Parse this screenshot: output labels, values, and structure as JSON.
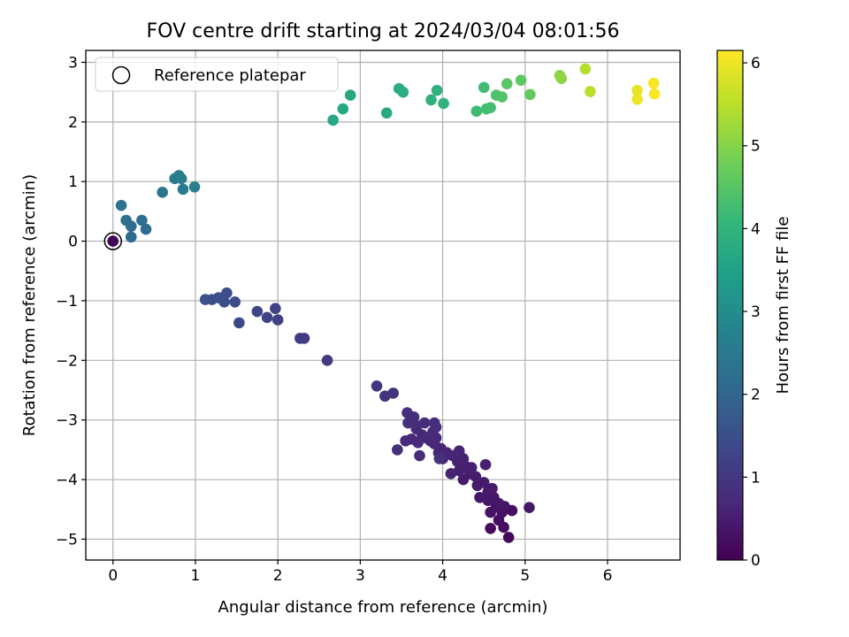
{
  "chart_data": {
    "type": "scatter",
    "title": "FOV centre drift starting at 2024/03/04 08:01:56",
    "xlabel": "Angular distance from reference (arcmin)",
    "ylabel": "Rotation from reference (arcmin)",
    "xlim": [
      -0.33,
      6.88
    ],
    "ylim": [
      -5.35,
      3.2
    ],
    "xticks": [
      0,
      1,
      2,
      3,
      4,
      5,
      6
    ],
    "yticks": [
      -5,
      -4,
      -3,
      -2,
      -1,
      0,
      1,
      2,
      3
    ],
    "grid": true,
    "legend": {
      "location": "upper-left",
      "entries": [
        "Reference platepar"
      ]
    },
    "reference_point": {
      "x": 0,
      "y": 0,
      "label": "Reference platepar"
    },
    "colorbar": {
      "label": "Hours from first FF file",
      "colormap": "viridis",
      "range": [
        0,
        6.15
      ],
      "ticks": [
        0,
        1,
        2,
        3,
        4,
        5,
        6
      ]
    },
    "series": [
      {
        "points": [
          {
            "x": 0.0,
            "y": 0.0,
            "c": 0.05
          },
          {
            "x": 4.8,
            "y": -4.97,
            "c": 0.1
          },
          {
            "x": 4.58,
            "y": -4.82,
            "c": 0.15
          },
          {
            "x": 4.74,
            "y": -4.8,
            "c": 0.2
          },
          {
            "x": 4.84,
            "y": -4.52,
            "c": 0.22
          },
          {
            "x": 4.68,
            "y": -4.68,
            "c": 0.25
          },
          {
            "x": 4.72,
            "y": -4.55,
            "c": 0.28
          },
          {
            "x": 4.58,
            "y": -4.55,
            "c": 0.3
          },
          {
            "x": 4.65,
            "y": -4.45,
            "c": 0.32
          },
          {
            "x": 4.75,
            "y": -4.45,
            "c": 0.34
          },
          {
            "x": 4.55,
            "y": -4.35,
            "c": 0.35
          },
          {
            "x": 4.62,
            "y": -4.3,
            "c": 0.36
          },
          {
            "x": 4.68,
            "y": -4.4,
            "c": 0.37
          },
          {
            "x": 5.05,
            "y": -4.47,
            "c": 0.38
          },
          {
            "x": 4.45,
            "y": -4.3,
            "c": 0.4
          },
          {
            "x": 4.55,
            "y": -4.2,
            "c": 0.42
          },
          {
            "x": 4.6,
            "y": -4.15,
            "c": 0.44
          },
          {
            "x": 4.42,
            "y": -4.1,
            "c": 0.45
          },
          {
            "x": 4.5,
            "y": -4.05,
            "c": 0.46
          },
          {
            "x": 4.25,
            "y": -4.0,
            "c": 0.47
          },
          {
            "x": 4.33,
            "y": -3.9,
            "c": 0.48
          },
          {
            "x": 4.4,
            "y": -3.95,
            "c": 0.5
          },
          {
            "x": 4.2,
            "y": -3.85,
            "c": 0.52
          },
          {
            "x": 4.28,
            "y": -3.78,
            "c": 0.54
          },
          {
            "x": 4.35,
            "y": -3.8,
            "c": 0.55
          },
          {
            "x": 4.52,
            "y": -3.75,
            "c": 0.56
          },
          {
            "x": 4.1,
            "y": -3.9,
            "c": 0.57
          },
          {
            "x": 4.18,
            "y": -3.7,
            "c": 0.58
          },
          {
            "x": 4.25,
            "y": -3.65,
            "c": 0.6
          },
          {
            "x": 4.2,
            "y": -3.52,
            "c": 0.61
          },
          {
            "x": 4.0,
            "y": -3.65,
            "c": 0.62
          },
          {
            "x": 4.05,
            "y": -3.55,
            "c": 0.63
          },
          {
            "x": 4.12,
            "y": -3.6,
            "c": 0.64
          },
          {
            "x": 3.95,
            "y": -3.55,
            "c": 0.65
          },
          {
            "x": 3.98,
            "y": -3.48,
            "c": 0.66
          },
          {
            "x": 3.9,
            "y": -3.4,
            "c": 0.67
          },
          {
            "x": 3.85,
            "y": -3.35,
            "c": 0.68
          },
          {
            "x": 3.92,
            "y": -3.3,
            "c": 0.69
          },
          {
            "x": 3.8,
            "y": -3.3,
            "c": 0.7
          },
          {
            "x": 3.75,
            "y": -3.25,
            "c": 0.71
          },
          {
            "x": 3.88,
            "y": -3.2,
            "c": 0.72
          },
          {
            "x": 3.7,
            "y": -3.38,
            "c": 0.73
          },
          {
            "x": 3.62,
            "y": -3.32,
            "c": 0.74
          },
          {
            "x": 3.55,
            "y": -3.35,
            "c": 0.75
          },
          {
            "x": 3.72,
            "y": -3.6,
            "c": 0.76
          },
          {
            "x": 3.68,
            "y": -3.15,
            "c": 0.77
          },
          {
            "x": 3.65,
            "y": -3.05,
            "c": 0.78
          },
          {
            "x": 3.78,
            "y": -3.05,
            "c": 0.79
          },
          {
            "x": 3.9,
            "y": -3.05,
            "c": 0.8
          },
          {
            "x": 3.92,
            "y": -3.12,
            "c": 0.81
          },
          {
            "x": 3.58,
            "y": -3.05,
            "c": 0.82
          },
          {
            "x": 3.65,
            "y": -2.95,
            "c": 0.83
          },
          {
            "x": 3.57,
            "y": -2.88,
            "c": 0.84
          },
          {
            "x": 3.45,
            "y": -3.5,
            "c": 0.85
          },
          {
            "x": 3.96,
            "y": -3.65,
            "c": 0.86
          },
          {
            "x": 3.4,
            "y": -2.55,
            "c": 0.9
          },
          {
            "x": 3.3,
            "y": -2.6,
            "c": 0.92
          },
          {
            "x": 3.2,
            "y": -2.43,
            "c": 0.95
          },
          {
            "x": 2.6,
            "y": -2.0,
            "c": 1.05
          },
          {
            "x": 2.32,
            "y": -1.63,
            "c": 1.1
          },
          {
            "x": 2.27,
            "y": -1.63,
            "c": 1.12
          },
          {
            "x": 2.0,
            "y": -1.32,
            "c": 1.2
          },
          {
            "x": 1.97,
            "y": -1.13,
            "c": 1.22
          },
          {
            "x": 1.87,
            "y": -1.28,
            "c": 1.25
          },
          {
            "x": 1.75,
            "y": -1.18,
            "c": 1.28
          },
          {
            "x": 1.53,
            "y": -1.37,
            "c": 1.35
          },
          {
            "x": 1.48,
            "y": -1.02,
            "c": 1.4
          },
          {
            "x": 1.38,
            "y": -0.87,
            "c": 1.45
          },
          {
            "x": 1.35,
            "y": -1.02,
            "c": 1.48
          },
          {
            "x": 1.28,
            "y": -0.95,
            "c": 1.5
          },
          {
            "x": 1.2,
            "y": -0.98,
            "c": 1.52
          },
          {
            "x": 1.12,
            "y": -0.98,
            "c": 1.55
          },
          {
            "x": 0.22,
            "y": 0.07,
            "c": 2.1
          },
          {
            "x": 0.4,
            "y": 0.2,
            "c": 2.15
          },
          {
            "x": 0.22,
            "y": 0.25,
            "c": 2.2
          },
          {
            "x": 0.35,
            "y": 0.35,
            "c": 2.22
          },
          {
            "x": 0.16,
            "y": 0.35,
            "c": 2.25
          },
          {
            "x": 0.1,
            "y": 0.6,
            "c": 2.3
          },
          {
            "x": 0.6,
            "y": 0.82,
            "c": 2.45
          },
          {
            "x": 0.85,
            "y": 0.87,
            "c": 2.5
          },
          {
            "x": 0.75,
            "y": 1.05,
            "c": 2.55
          },
          {
            "x": 0.8,
            "y": 1.1,
            "c": 2.58
          },
          {
            "x": 0.83,
            "y": 1.05,
            "c": 2.6
          },
          {
            "x": 0.99,
            "y": 0.91,
            "c": 2.65
          },
          {
            "x": 2.67,
            "y": 2.03,
            "c": 3.65
          },
          {
            "x": 2.79,
            "y": 2.22,
            "c": 3.68
          },
          {
            "x": 2.88,
            "y": 2.45,
            "c": 3.7
          },
          {
            "x": 3.32,
            "y": 2.15,
            "c": 3.75
          },
          {
            "x": 3.47,
            "y": 2.56,
            "c": 3.8
          },
          {
            "x": 3.52,
            "y": 2.5,
            "c": 3.82
          },
          {
            "x": 3.86,
            "y": 2.37,
            "c": 3.9
          },
          {
            "x": 3.93,
            "y": 2.53,
            "c": 3.93
          },
          {
            "x": 4.01,
            "y": 2.31,
            "c": 3.96
          },
          {
            "x": 4.41,
            "y": 2.18,
            "c": 4.2
          },
          {
            "x": 4.5,
            "y": 2.58,
            "c": 4.25
          },
          {
            "x": 4.53,
            "y": 2.22,
            "c": 4.28
          },
          {
            "x": 4.58,
            "y": 2.24,
            "c": 4.3
          },
          {
            "x": 4.65,
            "y": 2.45,
            "c": 4.4
          },
          {
            "x": 4.72,
            "y": 2.42,
            "c": 4.45
          },
          {
            "x": 4.78,
            "y": 2.64,
            "c": 4.55
          },
          {
            "x": 4.95,
            "y": 2.7,
            "c": 4.6
          },
          {
            "x": 5.06,
            "y": 2.46,
            "c": 4.65
          },
          {
            "x": 5.42,
            "y": 2.78,
            "c": 5.05
          },
          {
            "x": 5.44,
            "y": 2.73,
            "c": 5.1
          },
          {
            "x": 5.73,
            "y": 2.89,
            "c": 5.45
          },
          {
            "x": 5.79,
            "y": 2.51,
            "c": 5.5
          },
          {
            "x": 6.36,
            "y": 2.53,
            "c": 5.95
          },
          {
            "x": 6.36,
            "y": 2.38,
            "c": 6.0
          },
          {
            "x": 6.56,
            "y": 2.65,
            "c": 6.08
          },
          {
            "x": 6.57,
            "y": 2.47,
            "c": 6.12
          }
        ]
      }
    ]
  },
  "colors": {
    "marker_edge": "#000000",
    "legend_border": "#cccccc",
    "grid": "#b0b0b0",
    "viridis_stops": [
      "#440154",
      "#482878",
      "#3e4989",
      "#31688e",
      "#26828e",
      "#1f9e89",
      "#35b779",
      "#6ece58",
      "#b5de2b",
      "#fde725"
    ]
  }
}
